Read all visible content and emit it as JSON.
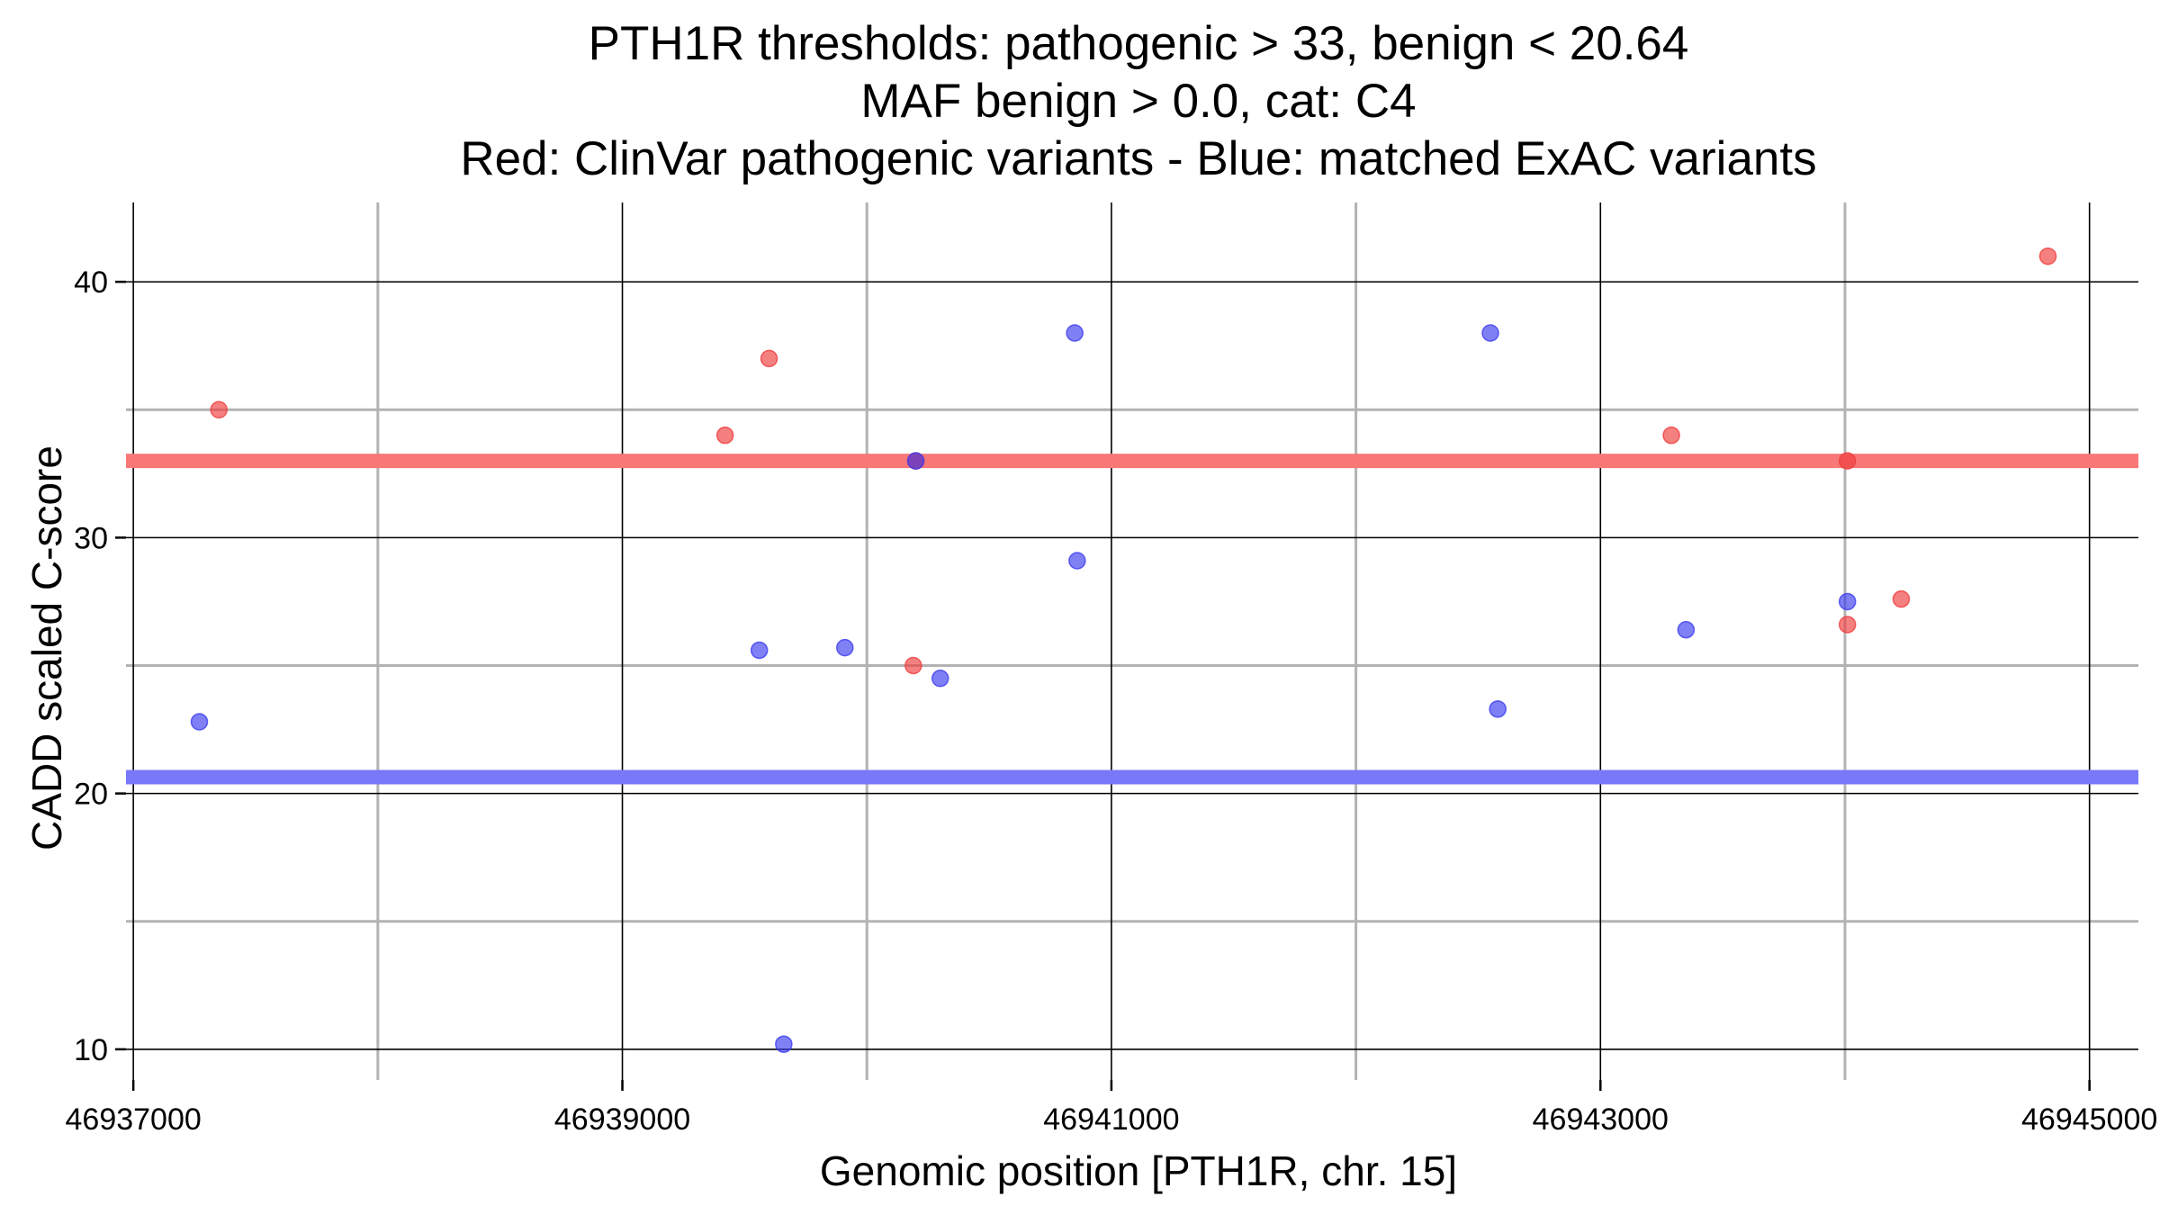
{
  "chart_data": {
    "type": "scatter",
    "title_lines": [
      "PTH1R thresholds: pathogenic > 33, benign < 20.64",
      "MAF benign > 0.0, cat: C4",
      "Red: ClinVar pathogenic variants - Blue: matched ExAC variants"
    ],
    "xlabel": "Genomic position [PTH1R, chr. 15]",
    "ylabel": "CADD scaled C-score",
    "xlim": [
      46936970,
      46945200
    ],
    "ylim": [
      8.8,
      43.1
    ],
    "x_ticks": [
      46937000,
      46939000,
      46941000,
      46943000,
      46945000
    ],
    "x_tick_labels": [
      "46937000",
      "46939000",
      "46941000",
      "46943000",
      "46945000"
    ],
    "y_ticks": [
      10,
      20,
      30,
      40
    ],
    "y_tick_labels": [
      "10",
      "20",
      "30",
      "40"
    ],
    "minor_x": [
      46938000,
      46940000,
      46942000,
      46944000
    ],
    "minor_y": [
      15,
      25,
      35
    ],
    "grid": true,
    "thresholds": [
      {
        "kind": "pathogenic",
        "y": 33,
        "color": "#f87878"
      },
      {
        "kind": "benign",
        "y": 20.64,
        "color": "#7878f8"
      }
    ],
    "series": [
      {
        "color": "#f03c3c",
        "points": [
          {
            "x": 46937350,
            "y": 35.0
          },
          {
            "x": 46939420,
            "y": 34.0
          },
          {
            "x": 46939600,
            "y": 37.0
          },
          {
            "x": 46940190,
            "y": 25.0
          },
          {
            "x": 46940200,
            "y": 33.0
          },
          {
            "x": 46943290,
            "y": 34.0
          },
          {
            "x": 46944010,
            "y": 26.6
          },
          {
            "x": 46944010,
            "y": 33.0
          },
          {
            "x": 46944230,
            "y": 27.6
          },
          {
            "x": 46944830,
            "y": 41.0
          }
        ]
      },
      {
        "color": "#3c3cf0",
        "points": [
          {
            "x": 46937270,
            "y": 22.8
          },
          {
            "x": 46939560,
            "y": 25.6
          },
          {
            "x": 46939660,
            "y": 10.2
          },
          {
            "x": 46939910,
            "y": 25.7
          },
          {
            "x": 46940200,
            "y": 33.0
          },
          {
            "x": 46940300,
            "y": 24.5
          },
          {
            "x": 46940850,
            "y": 38.0
          },
          {
            "x": 46940860,
            "y": 29.1
          },
          {
            "x": 46942550,
            "y": 38.0
          },
          {
            "x": 46942580,
            "y": 23.3
          },
          {
            "x": 46943350,
            "y": 26.4
          },
          {
            "x": 46944010,
            "y": 27.5
          }
        ]
      }
    ]
  }
}
